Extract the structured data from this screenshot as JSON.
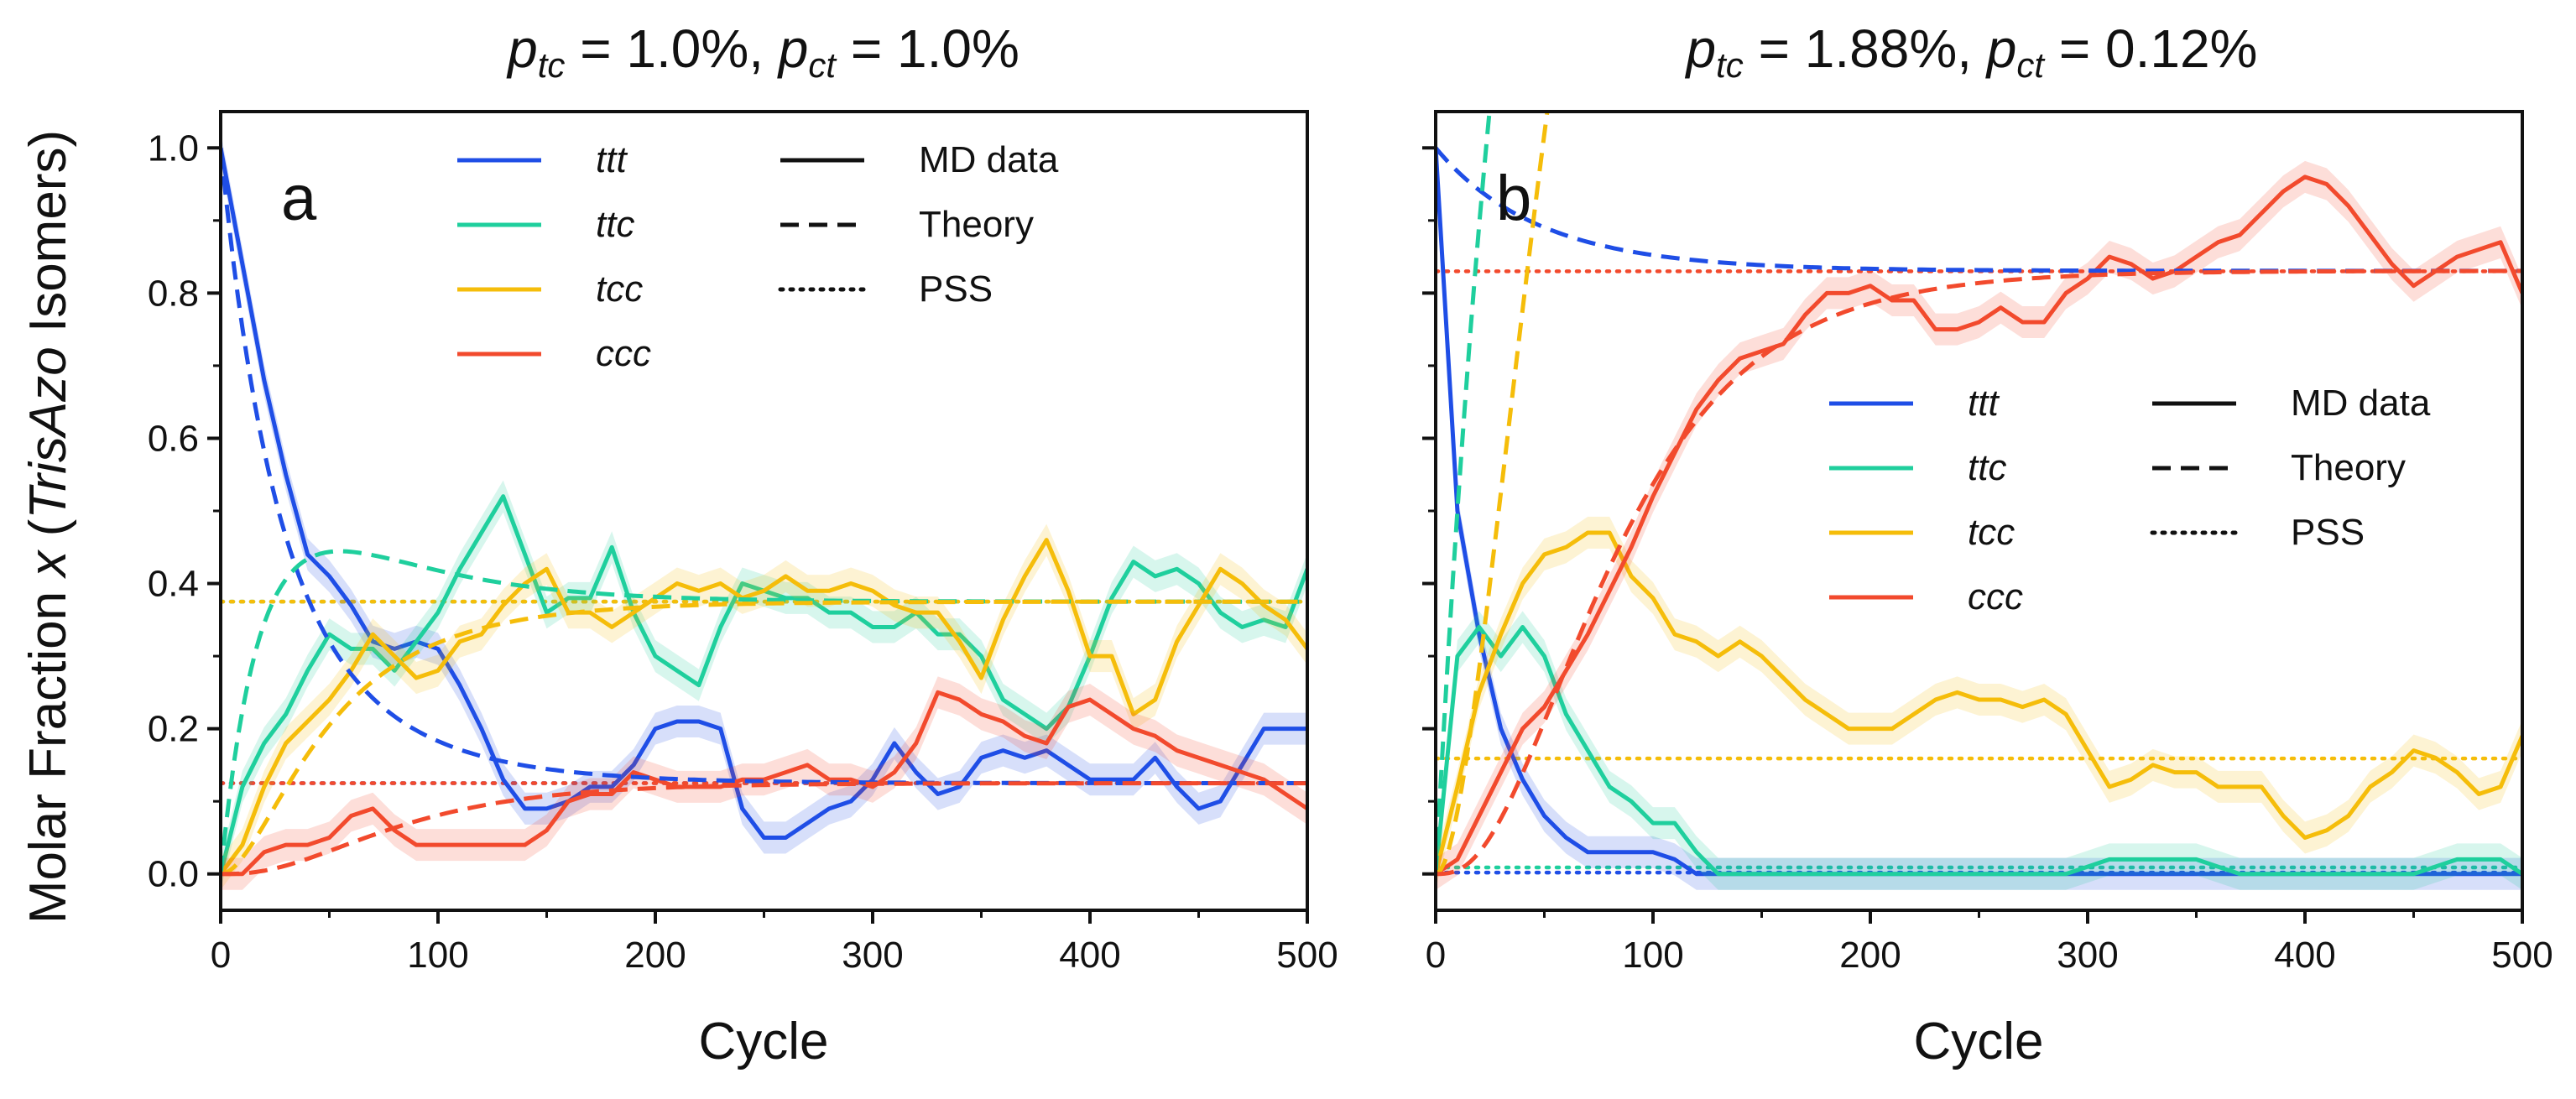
{
  "chart_data": [
    {
      "type": "line",
      "panel": "a",
      "title": {
        "p": "p",
        "sub1": "tc",
        "val1": " = 1.0%, ",
        "p2": "p",
        "sub2": "ct",
        "val2": " = 1.0%"
      },
      "xlabel": "Cycle",
      "ylabel_parts": {
        "pre": "Molar Fraction ",
        "x": "x",
        "open": " (",
        "name": "TrisAzo",
        "post": " Isomers)"
      },
      "xlim": [
        0,
        500
      ],
      "ylim": [
        -0.05,
        1.05
      ],
      "xticks": [
        "0",
        "100",
        "200",
        "300",
        "400",
        "500"
      ],
      "xtick_values": [
        0,
        100,
        200,
        300,
        400,
        500
      ],
      "yticks": [
        "0.0",
        "0.2",
        "0.4",
        "0.6",
        "0.8",
        "1.0"
      ],
      "ytick_values": [
        0,
        0.2,
        0.4,
        0.6,
        0.8,
        1.0
      ],
      "legend_series": [
        "ttt",
        "ttc",
        "tcc",
        "ccc"
      ],
      "legend_styles": [
        "MD data",
        "Theory",
        "PSS"
      ],
      "legend_position": "top",
      "theory": {
        "ptc": 0.01,
        "pct": 0.01
      },
      "pss": {
        "ttt": 0.125,
        "ttc": 0.375,
        "tcc": 0.375,
        "ccc": 0.125
      },
      "md_data": {
        "ttt": {
          "x": [
            0,
            10,
            20,
            30,
            40,
            50,
            60,
            70,
            80,
            90,
            100,
            110,
            120,
            130,
            140,
            150,
            160,
            170,
            180,
            190,
            200,
            210,
            220,
            230,
            240,
            250,
            260,
            270,
            280,
            290,
            300,
            310,
            320,
            330,
            340,
            350,
            360,
            370,
            380,
            390,
            400,
            410,
            420,
            430,
            440,
            450,
            460,
            470,
            480,
            490,
            500
          ],
          "y": [
            1.0,
            0.84,
            0.68,
            0.55,
            0.44,
            0.41,
            0.37,
            0.32,
            0.31,
            0.32,
            0.31,
            0.26,
            0.2,
            0.13,
            0.09,
            0.09,
            0.1,
            0.12,
            0.12,
            0.15,
            0.2,
            0.21,
            0.21,
            0.2,
            0.09,
            0.05,
            0.05,
            0.07,
            0.09,
            0.1,
            0.13,
            0.18,
            0.14,
            0.11,
            0.12,
            0.16,
            0.17,
            0.16,
            0.17,
            0.15,
            0.13,
            0.13,
            0.13,
            0.16,
            0.12,
            0.09,
            0.1,
            0.15,
            0.2,
            0.2,
            0.2
          ]
        },
        "ttc": {
          "x": [
            0,
            10,
            20,
            30,
            40,
            50,
            60,
            70,
            80,
            90,
            100,
            110,
            120,
            130,
            140,
            150,
            160,
            170,
            180,
            190,
            200,
            210,
            220,
            230,
            240,
            250,
            260,
            270,
            280,
            290,
            300,
            310,
            320,
            330,
            340,
            350,
            360,
            370,
            380,
            390,
            400,
            410,
            420,
            430,
            440,
            450,
            460,
            470,
            480,
            490,
            500
          ],
          "y": [
            0.0,
            0.12,
            0.18,
            0.22,
            0.28,
            0.33,
            0.31,
            0.31,
            0.28,
            0.32,
            0.36,
            0.42,
            0.47,
            0.52,
            0.44,
            0.36,
            0.38,
            0.38,
            0.45,
            0.36,
            0.3,
            0.28,
            0.26,
            0.34,
            0.4,
            0.39,
            0.38,
            0.38,
            0.36,
            0.36,
            0.34,
            0.34,
            0.36,
            0.33,
            0.33,
            0.3,
            0.24,
            0.22,
            0.2,
            0.23,
            0.3,
            0.38,
            0.43,
            0.41,
            0.42,
            0.4,
            0.36,
            0.34,
            0.35,
            0.34,
            0.42
          ]
        },
        "tcc": {
          "x": [
            0,
            10,
            20,
            30,
            40,
            50,
            60,
            70,
            80,
            90,
            100,
            110,
            120,
            130,
            140,
            150,
            160,
            170,
            180,
            190,
            200,
            210,
            220,
            230,
            240,
            250,
            260,
            270,
            280,
            290,
            300,
            310,
            320,
            330,
            340,
            350,
            360,
            370,
            380,
            390,
            400,
            410,
            420,
            430,
            440,
            450,
            460,
            470,
            480,
            490,
            500
          ],
          "y": [
            0.0,
            0.04,
            0.12,
            0.18,
            0.21,
            0.24,
            0.28,
            0.33,
            0.3,
            0.27,
            0.28,
            0.32,
            0.33,
            0.37,
            0.4,
            0.42,
            0.36,
            0.36,
            0.34,
            0.36,
            0.38,
            0.4,
            0.39,
            0.4,
            0.38,
            0.39,
            0.41,
            0.39,
            0.39,
            0.4,
            0.39,
            0.37,
            0.36,
            0.36,
            0.32,
            0.27,
            0.35,
            0.41,
            0.46,
            0.39,
            0.3,
            0.3,
            0.22,
            0.24,
            0.32,
            0.37,
            0.42,
            0.4,
            0.37,
            0.35,
            0.31
          ]
        },
        "ccc": {
          "x": [
            0,
            10,
            20,
            30,
            40,
            50,
            60,
            70,
            80,
            90,
            100,
            110,
            120,
            130,
            140,
            150,
            160,
            170,
            180,
            190,
            200,
            210,
            220,
            230,
            240,
            250,
            260,
            270,
            280,
            290,
            300,
            310,
            320,
            330,
            340,
            350,
            360,
            370,
            380,
            390,
            400,
            410,
            420,
            430,
            440,
            450,
            460,
            470,
            480,
            490,
            500
          ],
          "y": [
            0.0,
            0.0,
            0.03,
            0.04,
            0.04,
            0.05,
            0.08,
            0.09,
            0.06,
            0.04,
            0.04,
            0.04,
            0.04,
            0.04,
            0.04,
            0.06,
            0.1,
            0.11,
            0.11,
            0.14,
            0.13,
            0.12,
            0.12,
            0.12,
            0.13,
            0.13,
            0.14,
            0.15,
            0.13,
            0.13,
            0.12,
            0.14,
            0.18,
            0.25,
            0.24,
            0.22,
            0.21,
            0.19,
            0.18,
            0.23,
            0.24,
            0.22,
            0.2,
            0.19,
            0.17,
            0.16,
            0.15,
            0.14,
            0.13,
            0.11,
            0.09
          ]
        }
      }
    },
    {
      "type": "line",
      "panel": "b",
      "title": {
        "p": "p",
        "sub1": "tc",
        "val1": " = 1.88%, ",
        "p2": "p",
        "sub2": "ct",
        "val2": " = 0.12%"
      },
      "xlabel": "Cycle",
      "xlim": [
        0,
        500
      ],
      "ylim": [
        -0.05,
        1.05
      ],
      "xticks": [
        "0",
        "100",
        "200",
        "300",
        "400",
        "500"
      ],
      "xtick_values": [
        0,
        100,
        200,
        300,
        400,
        500
      ],
      "ytick_values": [
        0,
        0.2,
        0.4,
        0.6,
        0.8,
        1.0
      ],
      "legend_series": [
        "ttt",
        "ttc",
        "tcc",
        "ccc"
      ],
      "legend_styles": [
        "MD data",
        "Theory",
        "PSS"
      ],
      "legend_position": "center-right",
      "theory": {
        "ptc": 0.0188,
        "pct": 0.0012
      },
      "pss": {
        "ttt": 0.0019,
        "ttc": 0.0089,
        "tcc": 0.159,
        "ccc": 0.83
      },
      "md_data": {
        "ttt": {
          "x": [
            0,
            10,
            20,
            30,
            40,
            50,
            60,
            70,
            80,
            90,
            100,
            110,
            120,
            130,
            140,
            150,
            160,
            170,
            180,
            190,
            200,
            250,
            300,
            350,
            400,
            450,
            500
          ],
          "y": [
            1.0,
            0.5,
            0.33,
            0.2,
            0.13,
            0.08,
            0.05,
            0.03,
            0.03,
            0.03,
            0.03,
            0.02,
            0.0,
            0.0,
            0.0,
            0.0,
            0.0,
            0.0,
            0.0,
            0.0,
            0.0,
            0.0,
            0.0,
            0.0,
            0.0,
            0.0,
            0.0
          ]
        },
        "ttc": {
          "x": [
            0,
            10,
            20,
            30,
            40,
            50,
            60,
            70,
            80,
            90,
            100,
            110,
            120,
            130,
            140,
            150,
            160,
            170,
            180,
            190,
            200,
            250,
            290,
            300,
            310,
            320,
            330,
            340,
            350,
            360,
            370,
            380,
            390,
            400,
            450,
            470,
            480,
            490,
            500
          ],
          "y": [
            0.0,
            0.3,
            0.34,
            0.3,
            0.34,
            0.3,
            0.22,
            0.17,
            0.12,
            0.1,
            0.07,
            0.07,
            0.03,
            0.0,
            0.0,
            0.0,
            0.0,
            0.0,
            0.0,
            0.0,
            0.0,
            0.0,
            0.0,
            0.01,
            0.02,
            0.02,
            0.02,
            0.02,
            0.02,
            0.01,
            0.0,
            0.0,
            0.0,
            0.0,
            0.0,
            0.02,
            0.02,
            0.02,
            0.0
          ]
        },
        "tcc": {
          "x": [
            0,
            10,
            20,
            30,
            40,
            50,
            60,
            70,
            80,
            90,
            100,
            110,
            120,
            130,
            140,
            150,
            160,
            170,
            180,
            190,
            200,
            210,
            220,
            230,
            240,
            250,
            260,
            270,
            280,
            290,
            300,
            310,
            320,
            330,
            340,
            350,
            360,
            370,
            380,
            390,
            400,
            410,
            420,
            430,
            440,
            450,
            460,
            470,
            480,
            490,
            500
          ],
          "y": [
            0.0,
            0.12,
            0.25,
            0.33,
            0.4,
            0.44,
            0.45,
            0.47,
            0.47,
            0.41,
            0.38,
            0.33,
            0.32,
            0.3,
            0.32,
            0.3,
            0.27,
            0.24,
            0.22,
            0.2,
            0.2,
            0.2,
            0.22,
            0.24,
            0.25,
            0.24,
            0.24,
            0.23,
            0.24,
            0.22,
            0.17,
            0.12,
            0.13,
            0.15,
            0.14,
            0.14,
            0.12,
            0.12,
            0.12,
            0.08,
            0.05,
            0.06,
            0.08,
            0.12,
            0.14,
            0.17,
            0.16,
            0.14,
            0.11,
            0.12,
            0.19
          ]
        },
        "ccc": {
          "x": [
            0,
            10,
            20,
            30,
            40,
            50,
            60,
            70,
            80,
            90,
            100,
            110,
            120,
            130,
            140,
            150,
            160,
            170,
            180,
            190,
            200,
            210,
            220,
            230,
            240,
            250,
            260,
            270,
            280,
            290,
            300,
            310,
            320,
            330,
            340,
            350,
            360,
            370,
            380,
            390,
            400,
            410,
            420,
            430,
            440,
            450,
            460,
            470,
            480,
            490,
            500
          ],
          "y": [
            0.0,
            0.02,
            0.08,
            0.14,
            0.2,
            0.23,
            0.28,
            0.33,
            0.39,
            0.45,
            0.52,
            0.58,
            0.64,
            0.68,
            0.71,
            0.72,
            0.73,
            0.77,
            0.8,
            0.8,
            0.81,
            0.79,
            0.79,
            0.75,
            0.75,
            0.76,
            0.78,
            0.76,
            0.76,
            0.8,
            0.82,
            0.85,
            0.84,
            0.82,
            0.83,
            0.85,
            0.87,
            0.88,
            0.91,
            0.94,
            0.96,
            0.95,
            0.92,
            0.88,
            0.84,
            0.81,
            0.83,
            0.85,
            0.86,
            0.87,
            0.8
          ]
        }
      }
    }
  ],
  "series_colors": {
    "ttt": "#1f4ee6",
    "ttc": "#1fcf9d",
    "tcc": "#f5bd0a",
    "ccc": "#f24a2d"
  }
}
